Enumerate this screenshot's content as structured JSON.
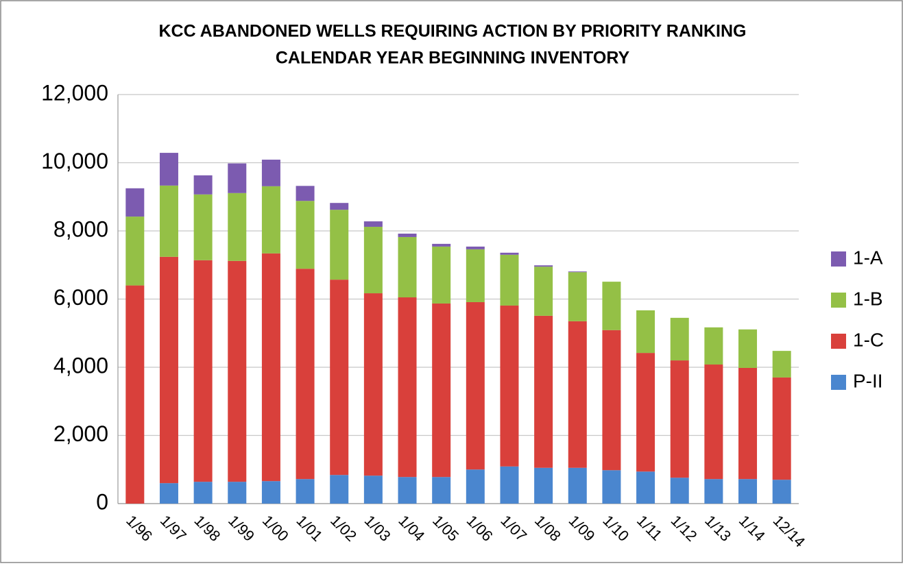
{
  "chart_data": {
    "type": "stacked_bar",
    "title": "KCC ABANDONED WELLS REQUIRING ACTION BY PRIORITY RANKING",
    "subtitle": "CALENDAR YEAR BEGINNING INVENTORY",
    "categories": [
      "1/96",
      "1/97",
      "1/98",
      "1/99",
      "1/00",
      "1/01",
      "1/02",
      "1/03",
      "1/04",
      "1/05",
      "1/06",
      "1/07",
      "1/08",
      "1/09",
      "1/10",
      "1/11",
      "1/12",
      "1/13",
      "1/14",
      "12/14"
    ],
    "series": [
      {
        "name": "P-II",
        "color": "#4a86cf",
        "values": [
          0,
          600,
          640,
          640,
          660,
          720,
          840,
          820,
          780,
          780,
          1000,
          1090,
          1050,
          1050,
          980,
          940,
          760,
          720,
          720,
          700
        ]
      },
      {
        "name": "1-C",
        "color": "#d9403b",
        "values": [
          6400,
          6640,
          6500,
          6480,
          6680,
          6170,
          5730,
          5350,
          5270,
          5090,
          4910,
          4720,
          4460,
          4300,
          4110,
          3480,
          3440,
          3360,
          3260,
          3000
        ]
      },
      {
        "name": "1-B",
        "color": "#94c046",
        "values": [
          2020,
          2090,
          1930,
          1990,
          1970,
          1990,
          2050,
          1950,
          1770,
          1670,
          1550,
          1490,
          1440,
          1440,
          1420,
          1250,
          1250,
          1090,
          1130,
          780
        ]
      },
      {
        "name": "1-A",
        "color": "#7c5bb0",
        "values": [
          830,
          960,
          560,
          870,
          780,
          440,
          200,
          160,
          100,
          80,
          80,
          60,
          40,
          20,
          0,
          0,
          0,
          0,
          0,
          0
        ]
      }
    ],
    "ylim": [
      0,
      12000
    ],
    "yticks": [
      0,
      {
        "value": 2000,
        "label": "2,000"
      },
      {
        "value": 4000,
        "label": "4,000"
      },
      {
        "value": 6000,
        "label": "6,000"
      },
      {
        "value": 8000,
        "label": "8,000"
      },
      {
        "value": 10000,
        "label": "10,000"
      },
      {
        "value": 12000,
        "label": "12,000"
      }
    ],
    "grid": true,
    "legend": "right"
  }
}
